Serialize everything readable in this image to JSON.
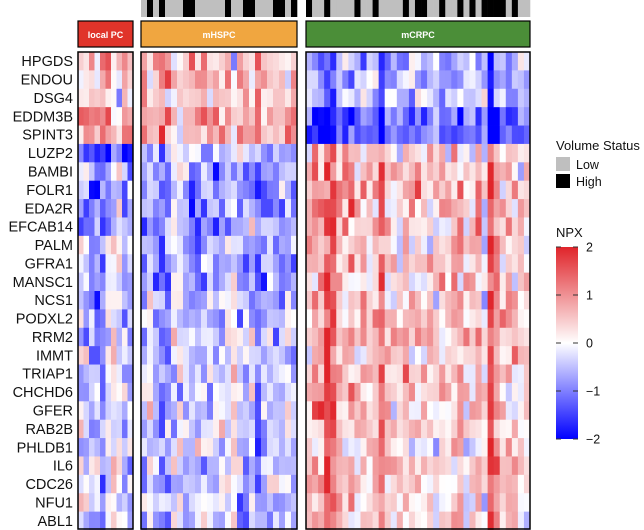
{
  "chart_data": {
    "type": "heatmap",
    "title": "",
    "genes": [
      "HPGDS",
      "ENDOU",
      "DSG4",
      "EDDM3B",
      "SPINT3",
      "LUZP2",
      "BAMBI",
      "FOLR1",
      "EDA2R",
      "EFCAB14",
      "PALM",
      "GFRA1",
      "MANSC1",
      "NCS1",
      "PODXL2",
      "RRM2",
      "IMMT",
      "TRIAP1",
      "CHCHD6",
      "GFER",
      "RAB2B",
      "PHLDB1",
      "IL6",
      "CDC26",
      "NFU1",
      "ABL1"
    ],
    "groups": [
      {
        "name": "local PC",
        "samples": 10,
        "color": "#e0342a",
        "profile": [
          0.6,
          0.4,
          0.2,
          1.1,
          0.9,
          -1.3,
          -0.7,
          -0.9,
          -1.0,
          -1.1,
          -0.5,
          -0.7,
          -0.7,
          -0.6,
          -0.5,
          -0.5,
          -0.5,
          -0.4,
          -0.4,
          -0.4,
          -0.3,
          -0.4,
          -0.2,
          -0.3,
          -0.2,
          -0.3
        ]
      },
      {
        "name": "mHSPC",
        "samples": 26,
        "color": "#f0a640",
        "profile": [
          0.4,
          0.8,
          0.4,
          0.9,
          0.8,
          -0.4,
          -0.7,
          -0.7,
          -0.8,
          -0.7,
          -0.6,
          -0.6,
          -0.7,
          -0.4,
          -0.5,
          -0.4,
          -0.4,
          -0.4,
          -0.4,
          -0.4,
          -0.3,
          -0.3,
          -0.3,
          -0.4,
          -0.4,
          -0.5
        ]
      },
      {
        "name": "mCRPC",
        "samples": 37,
        "color": "#4b8e38",
        "profile": [
          -0.6,
          -0.5,
          -0.5,
          -1.2,
          -1.1,
          0.4,
          0.5,
          0.6,
          0.5,
          0.5,
          0.4,
          0.4,
          0.4,
          0.4,
          0.4,
          0.5,
          0.4,
          0.5,
          0.3,
          0.3,
          0.4,
          0.3,
          0.5,
          0.4,
          0.4,
          0.4
        ]
      }
    ],
    "volume_status": {
      "title": "Volume Status",
      "levels": [
        {
          "label": "Low",
          "color": "#bfbfbf"
        },
        {
          "label": "High",
          "color": "#000000"
        }
      ],
      "groups_shown": [
        "mHSPC",
        "mCRPC"
      ]
    },
    "color_scale": {
      "title": "NPX",
      "min": -2,
      "max": 2,
      "ticks": [
        2,
        1,
        0,
        -1,
        -2
      ],
      "low_color": "#0000ff",
      "mid_color": "#ffffff",
      "high_color": "#e0242a"
    },
    "legend_position": "right"
  }
}
